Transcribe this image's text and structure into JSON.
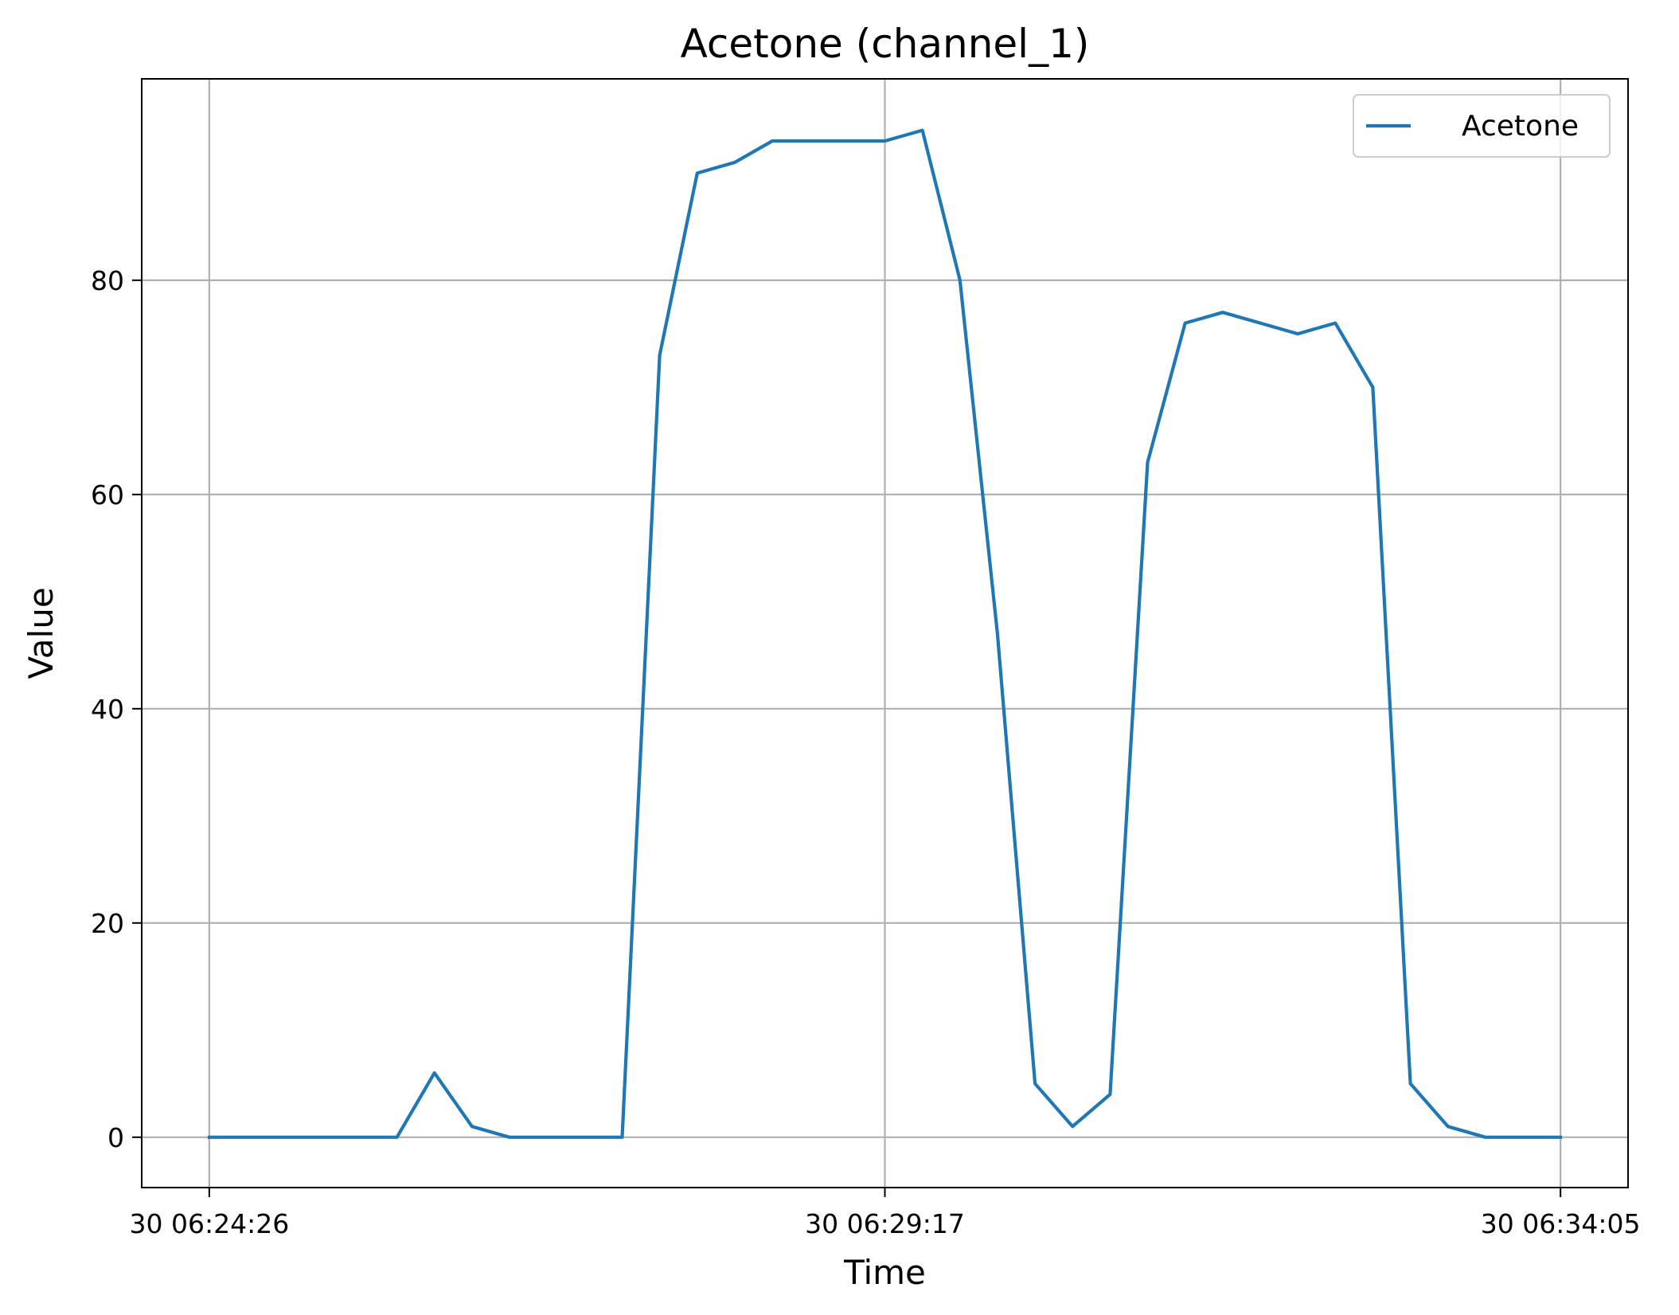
{
  "chart_data": {
    "type": "line",
    "title": "Acetone (channel_1)",
    "xlabel": "Time",
    "ylabel": "Value",
    "x_ticks": [
      {
        "label": "30 06:24:26",
        "index": 0
      },
      {
        "label": "30 06:29:17",
        "index": 18
      },
      {
        "label": "30 06:34:05",
        "index": 36
      }
    ],
    "x_range_index": [
      -1.8,
      37.8
    ],
    "y_ticks": [
      0,
      20,
      40,
      60,
      80
    ],
    "ylim": [
      -4.7,
      98.8
    ],
    "grid": true,
    "legend_position": "top-right",
    "series": [
      {
        "name": "Acetone",
        "color": "#1f77b4",
        "values": [
          0,
          0,
          0,
          0,
          0,
          0,
          6,
          1,
          0,
          0,
          0,
          0,
          73,
          90,
          91,
          93,
          93,
          93,
          93,
          94,
          80,
          47,
          5,
          1,
          4,
          63,
          76,
          77,
          76,
          75,
          76,
          70,
          5,
          1,
          0,
          0,
          0
        ]
      }
    ]
  }
}
